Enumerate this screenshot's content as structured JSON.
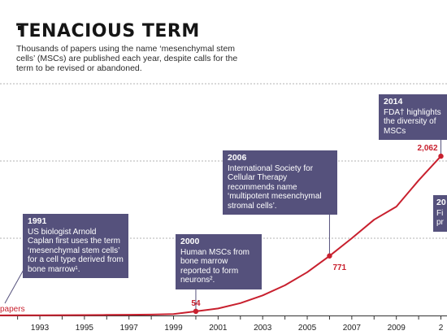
{
  "header": {
    "title": "TENACIOUS TERM",
    "subtitle": "Thousands of papers using the name ‘mesenchymal stem cells’ (MSCs) are published each year, despite calls for the term to be revised or abandoned."
  },
  "colors": {
    "line": "#c8202e",
    "box": "#55517c",
    "grid": "#9a9a9a",
    "axis": "#333333"
  },
  "annotations": [
    {
      "id": "a1991",
      "year": "1991",
      "text": "US biologist Arnold Caplan first uses the term ‘mesenchymal stem cells’ for a cell type derived from bone marrow¹."
    },
    {
      "id": "a2000",
      "year": "2000",
      "text": "Human MSCs from bone marrow reported to form neurons²."
    },
    {
      "id": "a2006",
      "year": "2006",
      "text": "International Society for Cellular Therapy recommends name ‘multipotent mesenchymal stromal cells’."
    },
    {
      "id": "a2014",
      "year": "2014",
      "text": "FDA† highlights the diversity of MSCs"
    },
    {
      "id": "a2016",
      "year": "20",
      "text": "Fi pr"
    }
  ],
  "left_label": "papers",
  "chart_data": {
    "type": "line",
    "title": "TENACIOUS TERM",
    "xlabel": "",
    "ylabel": "",
    "x": [
      1990,
      1991,
      1992,
      1993,
      1994,
      1995,
      1996,
      1997,
      1998,
      1999,
      2000,
      2001,
      2002,
      2003,
      2004,
      2005,
      2006,
      2007,
      2008,
      2009,
      2010,
      2011
    ],
    "series": [
      {
        "values": [
          0,
          1,
          2,
          3,
          4,
          5,
          7,
          9,
          12,
          18,
          54,
          90,
          160,
          260,
          390,
          560,
          771,
          1000,
          1240,
          1410,
          1750,
          2062
        ]
      }
    ],
    "xlim": [
      1990.7,
      2011.2
    ],
    "ylim": [
      0,
      3000
    ],
    "grid": true,
    "tick_labels": [
      "1",
      "1993",
      "1995",
      "1997",
      "1999",
      "2001",
      "2003",
      "2005",
      "2007",
      "2009",
      "2"
    ],
    "point_labels": [
      {
        "x": 2000,
        "y": 54,
        "label": "54"
      },
      {
        "x": 2006,
        "y": 771,
        "label": "771"
      },
      {
        "x": 2011,
        "y": 2062,
        "label": "2,062"
      }
    ]
  }
}
